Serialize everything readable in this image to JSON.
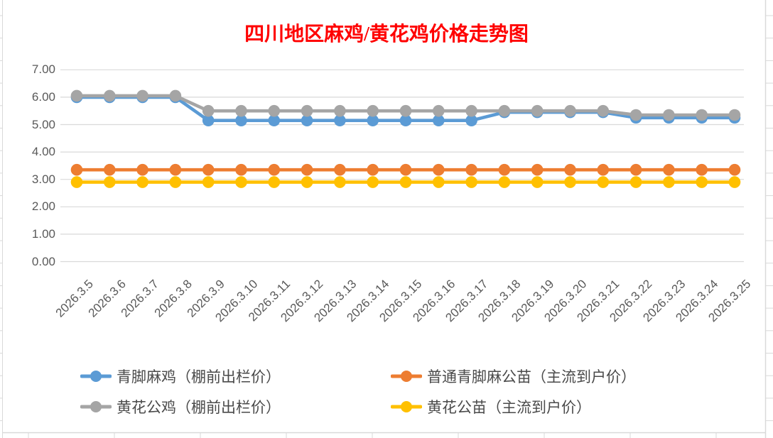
{
  "sheet": {
    "grid_color": "#D9D9D9",
    "chart_border_color": "#D9D9D9"
  },
  "chart_data": {
    "type": "line",
    "title": "四川地区麻鸡/黄花鸡价格走势图",
    "title_color": "#FF0000",
    "axis_text_color": "#595959",
    "grid": true,
    "legend_position": "bottom",
    "ylim": [
      0,
      7
    ],
    "y_tick_step": 1,
    "y_tick_labels": [
      "0.00",
      "1.00",
      "2.00",
      "3.00",
      "4.00",
      "5.00",
      "6.00",
      "7.00"
    ],
    "categories": [
      "2026.3.5",
      "2026.3.6",
      "2026.3.7",
      "2026.3.8",
      "2026.3.9",
      "2026.3.10",
      "2026.3.11",
      "2026.3.12",
      "2026.3.13",
      "2026.3.14",
      "2026.3.15",
      "2026.3.16",
      "2026.3.17",
      "2026.3.18",
      "2026.3.19",
      "2026.3.20",
      "2026.3.21",
      "2026.3.22",
      "2026.3.23",
      "2026.3.24",
      "2026.3.25"
    ],
    "series": [
      {
        "name": "青脚麻鸡（棚前出栏价）",
        "color": "#5B9BD5",
        "values": [
          6.0,
          6.0,
          6.0,
          6.0,
          5.15,
          5.15,
          5.15,
          5.15,
          5.15,
          5.15,
          5.15,
          5.15,
          5.15,
          5.45,
          5.45,
          5.45,
          5.45,
          5.25,
          5.25,
          5.25,
          5.25
        ]
      },
      {
        "name": "普通青脚麻公苗（主流到户价）",
        "color": "#ED7D31",
        "values": [
          3.35,
          3.35,
          3.35,
          3.35,
          3.35,
          3.35,
          3.35,
          3.35,
          3.35,
          3.35,
          3.35,
          3.35,
          3.35,
          3.35,
          3.35,
          3.35,
          3.35,
          3.35,
          3.35,
          3.35,
          3.35
        ]
      },
      {
        "name": "黄花公鸡（棚前出栏价）",
        "color": "#A5A5A5",
        "values": [
          6.05,
          6.05,
          6.05,
          6.05,
          5.5,
          5.5,
          5.5,
          5.5,
          5.5,
          5.5,
          5.5,
          5.5,
          5.5,
          5.5,
          5.5,
          5.5,
          5.5,
          5.35,
          5.35,
          5.35,
          5.35
        ]
      },
      {
        "name": "黄花公苗（主流到户价）",
        "color": "#FFC000",
        "values": [
          2.9,
          2.9,
          2.9,
          2.9,
          2.9,
          2.9,
          2.9,
          2.9,
          2.9,
          2.9,
          2.9,
          2.9,
          2.9,
          2.9,
          2.9,
          2.9,
          2.9,
          2.9,
          2.9,
          2.9,
          2.9
        ]
      }
    ]
  }
}
